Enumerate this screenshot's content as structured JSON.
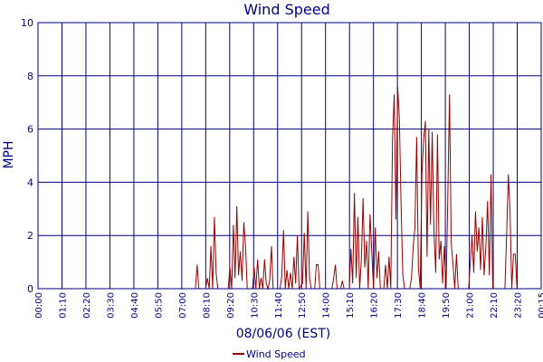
{
  "chart_data": {
    "type": "line",
    "title": "Wind Speed",
    "xlabel": "08/06/06 (EST)",
    "ylabel": "MPH",
    "ylim": [
      0,
      10
    ],
    "yticks": [
      "0",
      "2",
      "4",
      "6",
      "8",
      "10"
    ],
    "xticks": [
      "00:00",
      "01:10",
      "02:20",
      "03:30",
      "04:40",
      "05:50",
      "07:00",
      "08:10",
      "09:20",
      "10:30",
      "11:40",
      "12:50",
      "14:00",
      "15:10",
      "16:20",
      "17:30",
      "18:40",
      "19:50",
      "21:00",
      "22:10",
      "23:20",
      "00:15"
    ],
    "grid": true,
    "legend_position": "bottom",
    "series": [
      {
        "name": "Wind Speed",
        "color": "#990000",
        "points": [
          [
            "00:00",
            0
          ],
          [
            "07:00",
            0
          ],
          [
            "07:35",
            0
          ],
          [
            "07:40",
            0.9
          ],
          [
            "07:45",
            0
          ],
          [
            "08:05",
            0
          ],
          [
            "08:10",
            0.4
          ],
          [
            "08:15",
            0
          ],
          [
            "08:20",
            1.6
          ],
          [
            "08:25",
            0
          ],
          [
            "08:30",
            2.7
          ],
          [
            "08:35",
            0.6
          ],
          [
            "08:40",
            0
          ],
          [
            "09:10",
            0
          ],
          [
            "09:15",
            0.8
          ],
          [
            "09:20",
            0
          ],
          [
            "09:25",
            2.4
          ],
          [
            "09:30",
            0.4
          ],
          [
            "09:35",
            3.1
          ],
          [
            "09:40",
            0.5
          ],
          [
            "09:45",
            1.4
          ],
          [
            "09:50",
            0.3
          ],
          [
            "09:55",
            2.5
          ],
          [
            "10:00",
            1.6
          ],
          [
            "10:05",
            0
          ],
          [
            "10:20",
            0
          ],
          [
            "10:25",
            0.8
          ],
          [
            "10:30",
            0
          ],
          [
            "10:35",
            1.1
          ],
          [
            "10:40",
            0
          ],
          [
            "10:45",
            0.4
          ],
          [
            "10:50",
            0
          ],
          [
            "10:55",
            1.1
          ],
          [
            "11:00",
            0.2
          ],
          [
            "11:05",
            0
          ],
          [
            "11:10",
            0.3
          ],
          [
            "11:15",
            1.6
          ],
          [
            "11:20",
            0
          ],
          [
            "11:40",
            0
          ],
          [
            "11:45",
            0.5
          ],
          [
            "11:50",
            2.2
          ],
          [
            "11:55",
            0
          ],
          [
            "12:00",
            0.7
          ],
          [
            "12:05",
            0
          ],
          [
            "12:10",
            0.6
          ],
          [
            "12:15",
            0
          ],
          [
            "12:20",
            1.2
          ],
          [
            "12:25",
            0.2
          ],
          [
            "12:30",
            2.0
          ],
          [
            "12:35",
            0
          ],
          [
            "12:45",
            0.2
          ],
          [
            "12:50",
            2.1
          ],
          [
            "12:55",
            0
          ],
          [
            "13:00",
            2.9
          ],
          [
            "13:05",
            0.4
          ],
          [
            "13:10",
            0
          ],
          [
            "13:20",
            0
          ],
          [
            "13:25",
            0.9
          ],
          [
            "13:30",
            0.9
          ],
          [
            "13:35",
            0
          ],
          [
            "14:10",
            0
          ],
          [
            "14:15",
            0.4
          ],
          [
            "14:20",
            0.9
          ],
          [
            "14:25",
            0
          ],
          [
            "14:35",
            0
          ],
          [
            "14:40",
            0.3
          ],
          [
            "14:45",
            0
          ],
          [
            "15:00",
            0
          ],
          [
            "15:05",
            1.5
          ],
          [
            "15:10",
            0.2
          ],
          [
            "15:15",
            3.6
          ],
          [
            "15:20",
            0.4
          ],
          [
            "15:25",
            2.7
          ],
          [
            "15:30",
            0
          ],
          [
            "15:35",
            1.1
          ],
          [
            "15:40",
            3.4
          ],
          [
            "15:45",
            0.8
          ],
          [
            "15:50",
            1.8
          ],
          [
            "15:55",
            0
          ],
          [
            "16:00",
            2.8
          ],
          [
            "16:05",
            1.4
          ],
          [
            "16:10",
            0
          ],
          [
            "16:15",
            2.3
          ],
          [
            "16:20",
            0.4
          ],
          [
            "16:25",
            1.4
          ],
          [
            "16:30",
            0
          ],
          [
            "16:40",
            0
          ],
          [
            "16:45",
            0.9
          ],
          [
            "16:50",
            0
          ],
          [
            "16:55",
            1.2
          ],
          [
            "17:00",
            0
          ],
          [
            "17:05",
            5.6
          ],
          [
            "17:10",
            7.3
          ],
          [
            "17:15",
            2.6
          ],
          [
            "17:20",
            7.6
          ],
          [
            "17:25",
            6.4
          ],
          [
            "17:30",
            3.1
          ],
          [
            "17:35",
            0.5
          ],
          [
            "17:40",
            0
          ],
          [
            "17:55",
            0
          ],
          [
            "18:00",
            0.4
          ],
          [
            "18:05",
            1.6
          ],
          [
            "18:10",
            2.3
          ],
          [
            "18:15",
            5.7
          ],
          [
            "18:20",
            0.8
          ],
          [
            "18:25",
            0
          ],
          [
            "18:30",
            4.3
          ],
          [
            "18:35",
            5.6
          ],
          [
            "18:40",
            6.3
          ],
          [
            "18:45",
            1.2
          ],
          [
            "18:50",
            6.0
          ],
          [
            "18:55",
            2.4
          ],
          [
            "19:00",
            5.9
          ],
          [
            "19:05",
            2.1
          ],
          [
            "19:10",
            0.6
          ],
          [
            "19:15",
            5.8
          ],
          [
            "19:20",
            1.1
          ],
          [
            "19:25",
            1.8
          ],
          [
            "19:30",
            0.2
          ],
          [
            "19:35",
            1.6
          ],
          [
            "19:40",
            0
          ],
          [
            "19:45",
            3.4
          ],
          [
            "19:50",
            7.3
          ],
          [
            "19:55",
            1.7
          ],
          [
            "20:00",
            0.9
          ],
          [
            "20:05",
            0
          ],
          [
            "20:10",
            1.3
          ],
          [
            "20:15",
            0
          ],
          [
            "20:45",
            0
          ],
          [
            "20:50",
            1.0
          ],
          [
            "20:55",
            2.0
          ],
          [
            "21:00",
            0.6
          ],
          [
            "21:05",
            2.9
          ],
          [
            "21:10",
            1.4
          ],
          [
            "21:15",
            2.3
          ],
          [
            "21:20",
            0.7
          ],
          [
            "21:25",
            2.7
          ],
          [
            "21:30",
            0.5
          ],
          [
            "21:35",
            1.6
          ],
          [
            "21:40",
            3.3
          ],
          [
            "21:45",
            0.5
          ],
          [
            "21:50",
            4.3
          ],
          [
            "21:55",
            0
          ],
          [
            "22:30",
            0
          ],
          [
            "22:35",
            2.0
          ],
          [
            "22:40",
            4.3
          ],
          [
            "22:45",
            2.9
          ],
          [
            "22:50",
            0
          ],
          [
            "22:55",
            1.3
          ],
          [
            "23:00",
            1.3
          ],
          [
            "23:05",
            0
          ],
          [
            "00:15",
            0
          ]
        ]
      }
    ]
  }
}
